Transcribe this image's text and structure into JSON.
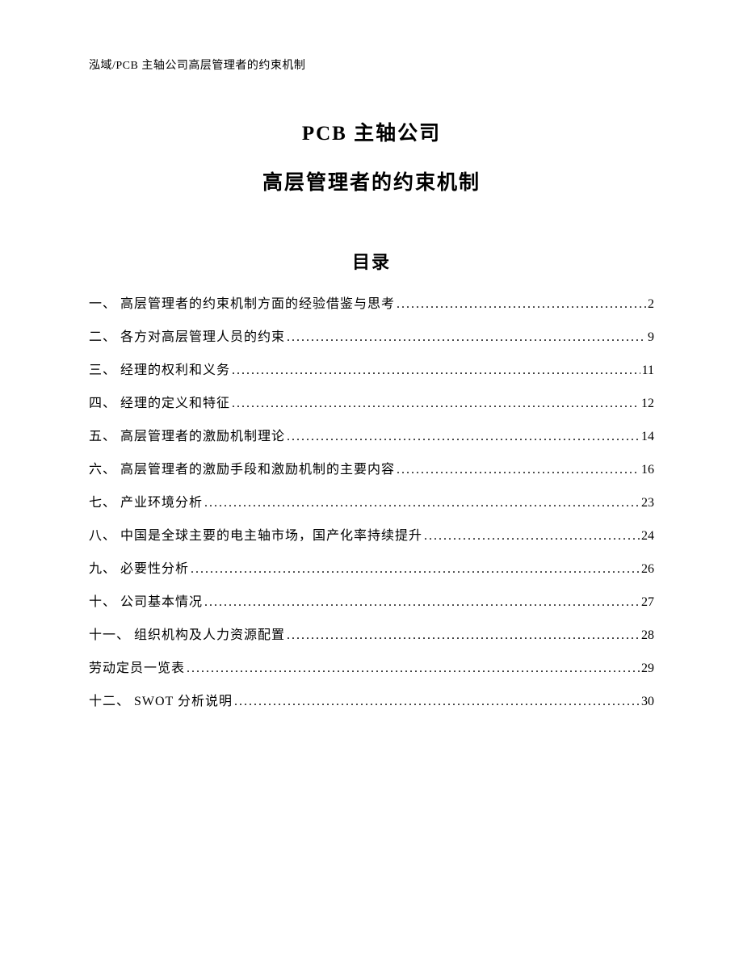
{
  "header": "泓域/PCB 主轴公司高层管理者的约束机制",
  "title_line_1": "PCB 主轴公司",
  "title_line_2": "高层管理者的约束机制",
  "toc_heading": "目录",
  "toc": [
    {
      "label": "一、 高层管理者的约束机制方面的经验借鉴与思考",
      "page": "2"
    },
    {
      "label": "二、 各方对高层管理人员的约束",
      "page": "9"
    },
    {
      "label": "三、 经理的权利和义务",
      "page": "11"
    },
    {
      "label": "四、 经理的定义和特征",
      "page": "12"
    },
    {
      "label": "五、 高层管理者的激励机制理论",
      "page": "14"
    },
    {
      "label": "六、 高层管理者的激励手段和激励机制的主要内容",
      "page": "16"
    },
    {
      "label": "七、 产业环境分析",
      "page": "23"
    },
    {
      "label": "八、 中国是全球主要的电主轴市场，国产化率持续提升",
      "page": "24"
    },
    {
      "label": "九、 必要性分析",
      "page": "26"
    },
    {
      "label": "十、 公司基本情况",
      "page": "27"
    },
    {
      "label": "十一、 组织机构及人力资源配置",
      "page": "28"
    },
    {
      "label": "劳动定员一览表",
      "page": "29"
    },
    {
      "label": "十二、 SWOT 分析说明",
      "page": "30"
    }
  ],
  "colors": {
    "text": "#000000",
    "background": "#ffffff"
  },
  "typography": {
    "header_fontsize": 14,
    "title_fontsize": 25,
    "toc_heading_fontsize": 22,
    "toc_item_fontsize": 16,
    "title_weight": "bold",
    "toc_heading_weight": "bold"
  }
}
